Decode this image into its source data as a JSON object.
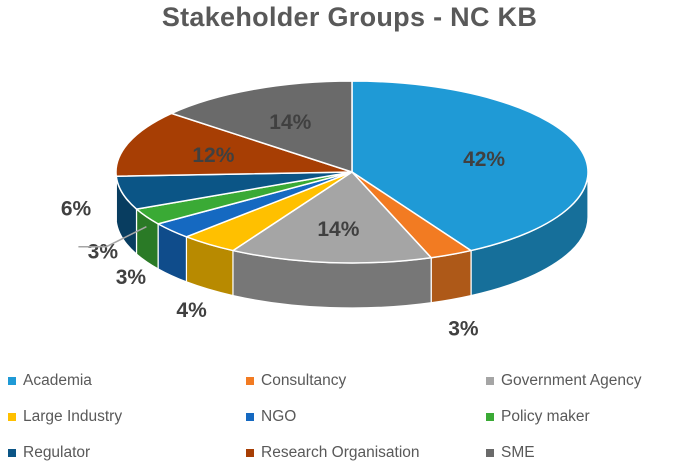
{
  "chart_data": {
    "type": "pie",
    "title": "Stakeholder Groups - NC KB",
    "categories": [
      "Academia",
      "Consultancy",
      "Government Agency",
      "Large Industry",
      "NGO",
      "Policy maker",
      "Regulator",
      "Research Organisation",
      "SME"
    ],
    "values": [
      42,
      3,
      14,
      4,
      3,
      3,
      6,
      12,
      14
    ],
    "labels": [
      "42%",
      "3%",
      "14%",
      "4%",
      "3%",
      "3%",
      "6%",
      "12%",
      "14%"
    ],
    "colors": [
      "#1F9AD6",
      "#F27B22",
      "#A5A5A5",
      "#FFC000",
      "#1569C1",
      "#3AAA35",
      "#0B5586",
      "#A73E04",
      "#6A6A6A"
    ],
    "legend_position": "bottom",
    "style": "3d-pie"
  }
}
